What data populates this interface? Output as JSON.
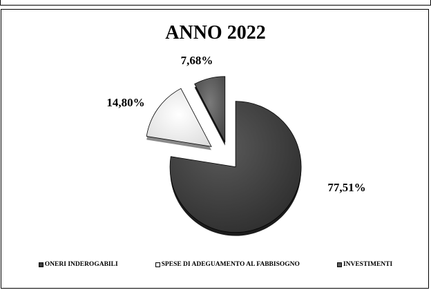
{
  "chart_data": {
    "type": "pie",
    "title": "ANNO 2022",
    "categories": [
      "ONERI INDEROGABILI",
      "SPESE DI ADEGUAMENTO AL FABBISOGNO",
      "INVESTIMENTI"
    ],
    "values": [
      77.51,
      14.8,
      7.68
    ],
    "value_labels": [
      "77,51%",
      "14,80%",
      "7,68%"
    ],
    "colors": [
      "#3d3d3d",
      "#f3f3f3",
      "#5a5a5a"
    ],
    "exploded": true,
    "legend_position": "bottom"
  }
}
